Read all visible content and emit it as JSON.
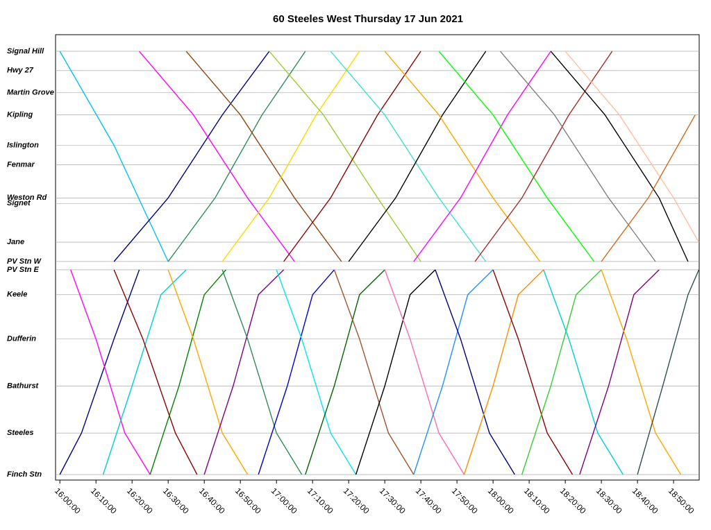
{
  "chart_data": {
    "type": "marey",
    "title": "60 Steeles West Thursday 17 Jun 2021",
    "xlim": [
      958.8,
      1137.1
    ],
    "xticks": [
      {
        "value": 960,
        "label": "16:00:00"
      },
      {
        "value": 970,
        "label": "16:10:00"
      },
      {
        "value": 980,
        "label": "16:20:00"
      },
      {
        "value": 990,
        "label": "16:30:00"
      },
      {
        "value": 1000,
        "label": "16:40:00"
      },
      {
        "value": 1010,
        "label": "16:50:00"
      },
      {
        "value": 1020,
        "label": "17:00:00"
      },
      {
        "value": 1030,
        "label": "17:10:00"
      },
      {
        "value": 1040,
        "label": "17:20:00"
      },
      {
        "value": 1050,
        "label": "17:30:00"
      },
      {
        "value": 1060,
        "label": "17:40:00"
      },
      {
        "value": 1070,
        "label": "17:50:00"
      },
      {
        "value": 1080,
        "label": "18:00:00"
      },
      {
        "value": 1090,
        "label": "18:10:00"
      },
      {
        "value": 1100,
        "label": "18:20:00"
      },
      {
        "value": 1110,
        "label": "18:30:00"
      },
      {
        "value": 1120,
        "label": "18:40:00"
      },
      {
        "value": 1130,
        "label": "18:50:00"
      }
    ],
    "ylim": [
      -0.2,
      15.9
    ],
    "yticks": [
      {
        "value": 15.3,
        "label": "Signal Hill"
      },
      {
        "value": 14.6,
        "label": "Hwy 27"
      },
      {
        "value": 13.8,
        "label": "Martin Grove"
      },
      {
        "value": 13.0,
        "label": "Kipling"
      },
      {
        "value": 11.9,
        "label": "Islington"
      },
      {
        "value": 11.2,
        "label": "Fenmar"
      },
      {
        "value": 10.0,
        "label": "Weston Rd"
      },
      {
        "value": 9.8,
        "label": "Signet"
      },
      {
        "value": 8.4,
        "label": "Jane"
      },
      {
        "value": 7.7,
        "label": "PV Stn W"
      },
      {
        "value": 7.4,
        "label": "PV Stn E"
      },
      {
        "value": 6.5,
        "label": "Keele"
      },
      {
        "value": 4.9,
        "label": "Dufferin"
      },
      {
        "value": 3.2,
        "label": "Bathurst"
      },
      {
        "value": 1.5,
        "label": "Steeles"
      },
      {
        "value": 0,
        "label": "Finch Stn"
      }
    ],
    "grid": true,
    "trips": [
      {
        "color": "#000080",
        "x": [
          960,
          966,
          975,
          982
        ],
        "y": [
          0,
          1.5,
          4.9,
          7.4
        ]
      },
      {
        "color": "#ff00ff",
        "x": [
          963,
          970,
          978,
          985
        ],
        "y": [
          7.4,
          4.9,
          1.5,
          0
        ]
      },
      {
        "color": "#00ced1",
        "x": [
          972,
          980,
          988,
          995
        ],
        "y": [
          0,
          3.2,
          6.5,
          7.4
        ]
      },
      {
        "color": "#8b0000",
        "x": [
          975,
          983,
          992,
          998
        ],
        "y": [
          7.4,
          4.9,
          1.5,
          0
        ]
      },
      {
        "color": "#008000",
        "x": [
          985,
          993,
          1000,
          1006
        ],
        "y": [
          0,
          3.2,
          6.5,
          7.4
        ]
      },
      {
        "color": "#ffa500",
        "x": [
          990,
          997,
          1005,
          1012
        ],
        "y": [
          7.4,
          4.9,
          1.5,
          0
        ]
      },
      {
        "color": "#800080",
        "x": [
          1000,
          1008,
          1015,
          1022
        ],
        "y": [
          0,
          3.2,
          6.5,
          7.4
        ]
      },
      {
        "color": "#2e8b57",
        "x": [
          1005,
          1012,
          1020,
          1027
        ],
        "y": [
          7.4,
          4.9,
          1.5,
          0
        ]
      },
      {
        "color": "#0000cd",
        "x": [
          1015,
          1023,
          1030,
          1036
        ],
        "y": [
          0,
          3.2,
          6.5,
          7.4
        ]
      },
      {
        "color": "#00e5ee",
        "x": [
          1020,
          1027,
          1035,
          1042
        ],
        "y": [
          7.4,
          4.9,
          1.5,
          0
        ]
      },
      {
        "color": "#006400",
        "x": [
          1028,
          1036,
          1043,
          1050
        ],
        "y": [
          0,
          3.2,
          6.5,
          7.4
        ]
      },
      {
        "color": "#a0522d",
        "x": [
          1036,
          1043,
          1051,
          1058
        ],
        "y": [
          7.4,
          4.9,
          1.5,
          0
        ]
      },
      {
        "color": "#000000",
        "x": [
          1042,
          1050,
          1057,
          1064
        ],
        "y": [
          0,
          3.2,
          6.5,
          7.4
        ]
      },
      {
        "color": "#ff69b4",
        "x": [
          1050,
          1057,
          1065,
          1072
        ],
        "y": [
          7.4,
          4.9,
          1.5,
          0
        ]
      },
      {
        "color": "#1e90ff",
        "x": [
          1058,
          1066,
          1073,
          1080
        ],
        "y": [
          0,
          3.2,
          6.5,
          7.4
        ]
      },
      {
        "color": "#000080",
        "x": [
          1064,
          1071,
          1079,
          1086
        ],
        "y": [
          7.4,
          4.9,
          1.5,
          0
        ]
      },
      {
        "color": "#ff8c00",
        "x": [
          1072,
          1080,
          1087,
          1094
        ],
        "y": [
          0,
          3.2,
          6.5,
          7.4
        ]
      },
      {
        "color": "#8b0000",
        "x": [
          1080,
          1087,
          1095,
          1102
        ],
        "y": [
          7.4,
          4.9,
          1.5,
          0
        ]
      },
      {
        "color": "#32cd32",
        "x": [
          1088,
          1096,
          1103,
          1110
        ],
        "y": [
          0,
          3.2,
          6.5,
          7.4
        ]
      },
      {
        "color": "#00ced1",
        "x": [
          1094,
          1101,
          1109,
          1116
        ],
        "y": [
          7.4,
          4.9,
          1.5,
          0
        ]
      },
      {
        "color": "#800080",
        "x": [
          1104,
          1112,
          1119,
          1126
        ],
        "y": [
          0,
          3.2,
          6.5,
          7.4
        ]
      },
      {
        "color": "#ffa500",
        "x": [
          1110,
          1117,
          1125,
          1132
        ],
        "y": [
          7.4,
          4.9,
          1.5,
          0
        ]
      },
      {
        "color": "#2f4f4f",
        "x": [
          1120,
          1127,
          1134,
          1137
        ],
        "y": [
          0,
          3.2,
          6.5,
          7.4
        ]
      },
      {
        "color": "#00bfff",
        "x": [
          960,
          975,
          990
        ],
        "y": [
          15.3,
          11.9,
          7.7
        ]
      },
      {
        "color": "#000080",
        "x": [
          975,
          990,
          1005,
          1018
        ],
        "y": [
          7.7,
          10.0,
          13.0,
          15.3
        ]
      },
      {
        "color": "#ff00ff",
        "x": [
          982,
          997,
          1012,
          1025
        ],
        "y": [
          15.3,
          13.0,
          10.0,
          7.7
        ]
      },
      {
        "color": "#2e8b57",
        "x": [
          990,
          1003,
          1016,
          1028
        ],
        "y": [
          7.7,
          10.0,
          13.0,
          15.3
        ]
      },
      {
        "color": "#8b4513",
        "x": [
          995,
          1010,
          1025,
          1038
        ],
        "y": [
          15.3,
          13.0,
          10.0,
          7.7
        ]
      },
      {
        "color": "#ffd700",
        "x": [
          1005,
          1018,
          1031,
          1043
        ],
        "y": [
          7.7,
          10.0,
          13.0,
          15.3
        ]
      },
      {
        "color": "#9acd32",
        "x": [
          1018,
          1033,
          1048,
          1060
        ],
        "y": [
          15.3,
          13.0,
          10.0,
          7.7
        ]
      },
      {
        "color": "#8b0000",
        "x": [
          1022,
          1035,
          1048,
          1060
        ],
        "y": [
          7.7,
          10.0,
          13.0,
          15.3
        ]
      },
      {
        "color": "#40e0d0",
        "x": [
          1035,
          1050,
          1065,
          1078
        ],
        "y": [
          15.3,
          13.0,
          10.0,
          7.7
        ]
      },
      {
        "color": "#000000",
        "x": [
          1040,
          1053,
          1066,
          1078
        ],
        "y": [
          7.7,
          10.0,
          13.0,
          15.3
        ]
      },
      {
        "color": "#ffa500",
        "x": [
          1050,
          1065,
          1080,
          1093
        ],
        "y": [
          15.3,
          13.0,
          10.0,
          7.7
        ]
      },
      {
        "color": "#ff00ff",
        "x": [
          1058,
          1071,
          1084,
          1096
        ],
        "y": [
          7.7,
          10.0,
          13.0,
          15.3
        ]
      },
      {
        "color": "#00ff00",
        "x": [
          1065,
          1080,
          1095,
          1108
        ],
        "y": [
          15.3,
          13.0,
          10.0,
          7.7
        ]
      },
      {
        "color": "#a52a2a",
        "x": [
          1075,
          1088,
          1101,
          1113
        ],
        "y": [
          7.7,
          10.0,
          13.0,
          15.3
        ]
      },
      {
        "color": "#808080",
        "x": [
          1082,
          1097,
          1112,
          1125
        ],
        "y": [
          15.3,
          13.0,
          10.0,
          7.7
        ]
      },
      {
        "color": "#000000",
        "x": [
          1096,
          1111,
          1126,
          1134
        ],
        "y": [
          15.3,
          13.0,
          10.0,
          7.7
        ]
      },
      {
        "color": "#ffc0a0",
        "x": [
          1100,
          1115,
          1130,
          1137
        ],
        "y": [
          15.3,
          13.0,
          10.0,
          8.4
        ]
      },
      {
        "color": "#d2691e",
        "x": [
          1110,
          1123,
          1136
        ],
        "y": [
          7.7,
          10.0,
          13.0
        ]
      }
    ]
  }
}
